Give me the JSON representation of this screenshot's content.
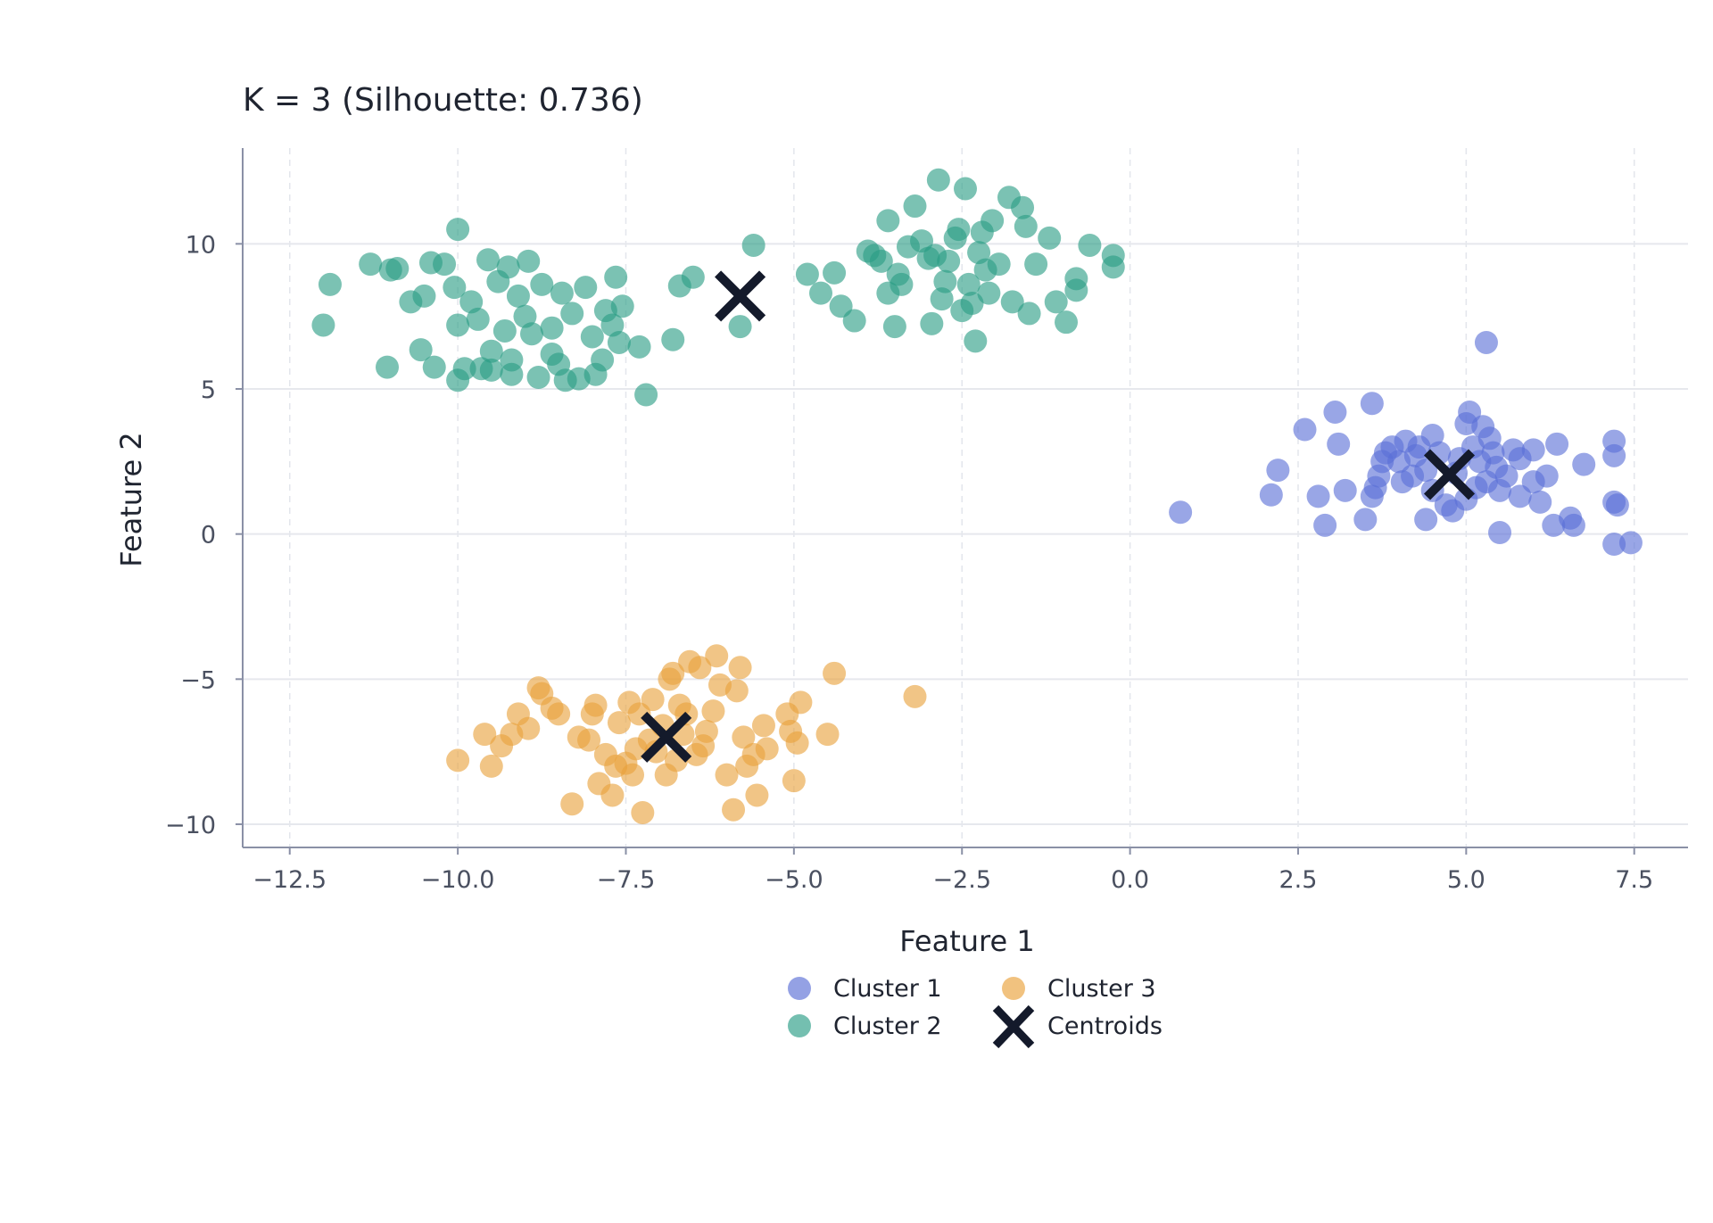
{
  "chart_data": {
    "type": "scatter",
    "title": "K = 3 (Silhouette: 0.736)",
    "xlabel": "Feature 1",
    "ylabel": "Feature 2",
    "xlim": [
      -13.2,
      8.3
    ],
    "ylim": [
      -10.8,
      13.3
    ],
    "xticks": [
      -12.5,
      -10.0,
      -7.5,
      -5.0,
      -2.5,
      0.0,
      2.5,
      5.0,
      7.5
    ],
    "xtick_labels": [
      "−12.5",
      "−10.0",
      "−7.5",
      "−5.0",
      "−2.5",
      "0.0",
      "2.5",
      "5.0",
      "7.5"
    ],
    "yticks": [
      -10,
      -5,
      0,
      5,
      10
    ],
    "ytick_labels": [
      "−10",
      "−5",
      "0",
      "5",
      "10"
    ],
    "grid": true,
    "legend_position": "bottom-center",
    "series": [
      {
        "name": "Cluster 1",
        "color": "#5b6fd6",
        "marker": "circle",
        "points": [
          [
            5.3,
            6.6
          ],
          [
            0.75,
            0.75
          ],
          [
            2.1,
            1.35
          ],
          [
            2.2,
            2.2
          ],
          [
            2.6,
            3.6
          ],
          [
            3.05,
            4.2
          ],
          [
            3.1,
            3.1
          ],
          [
            3.6,
            4.5
          ],
          [
            2.8,
            1.3
          ],
          [
            2.9,
            0.3
          ],
          [
            3.2,
            1.5
          ],
          [
            3.5,
            0.5
          ],
          [
            3.6,
            1.3
          ],
          [
            3.7,
            2.0
          ],
          [
            3.8,
            2.8
          ],
          [
            3.9,
            3.0
          ],
          [
            4.0,
            2.5
          ],
          [
            4.1,
            3.2
          ],
          [
            4.2,
            2.0
          ],
          [
            4.3,
            3.0
          ],
          [
            4.4,
            2.2
          ],
          [
            4.5,
            3.4
          ],
          [
            4.5,
            1.5
          ],
          [
            4.4,
            0.5
          ],
          [
            4.6,
            2.8
          ],
          [
            4.7,
            1.0
          ],
          [
            4.8,
            0.8
          ],
          [
            4.9,
            2.6
          ],
          [
            5.0,
            3.8
          ],
          [
            5.0,
            1.2
          ],
          [
            5.05,
            4.2
          ],
          [
            5.1,
            3.0
          ],
          [
            5.2,
            2.5
          ],
          [
            5.25,
            3.7
          ],
          [
            5.3,
            1.8
          ],
          [
            5.35,
            3.3
          ],
          [
            5.4,
            2.8
          ],
          [
            5.5,
            1.5
          ],
          [
            5.5,
            0.05
          ],
          [
            5.6,
            2.0
          ],
          [
            5.7,
            2.9
          ],
          [
            5.8,
            1.3
          ],
          [
            5.8,
            2.6
          ],
          [
            6.0,
            1.8
          ],
          [
            6.0,
            2.9
          ],
          [
            6.1,
            1.1
          ],
          [
            6.2,
            2.0
          ],
          [
            6.3,
            0.3
          ],
          [
            6.35,
            3.1
          ],
          [
            6.55,
            0.55
          ],
          [
            6.6,
            0.3
          ],
          [
            6.75,
            2.4
          ],
          [
            7.2,
            3.2
          ],
          [
            7.2,
            2.7
          ],
          [
            7.2,
            1.1
          ],
          [
            7.25,
            1.0
          ],
          [
            7.2,
            -0.35
          ],
          [
            7.45,
            -0.3
          ],
          [
            3.75,
            2.5
          ],
          [
            4.05,
            1.8
          ],
          [
            4.85,
            2.1
          ],
          [
            5.15,
            1.6
          ],
          [
            3.65,
            1.6
          ],
          [
            4.25,
            2.7
          ],
          [
            5.45,
            2.3
          ]
        ]
      },
      {
        "name": "Cluster 2",
        "color": "#2a9d85",
        "marker": "circle",
        "points": [
          [
            -12.0,
            7.2
          ],
          [
            -11.9,
            8.6
          ],
          [
            -11.3,
            9.3
          ],
          [
            -11.0,
            9.1
          ],
          [
            -10.9,
            9.15
          ],
          [
            -11.05,
            5.75
          ],
          [
            -10.7,
            8.0
          ],
          [
            -10.5,
            8.2
          ],
          [
            -10.4,
            9.35
          ],
          [
            -10.2,
            9.3
          ],
          [
            -10.55,
            6.35
          ],
          [
            -10.35,
            5.75
          ],
          [
            -10.0,
            10.5
          ],
          [
            -10.05,
            8.5
          ],
          [
            -10.0,
            7.2
          ],
          [
            -10.0,
            5.3
          ],
          [
            -9.9,
            5.7
          ],
          [
            -9.8,
            8.0
          ],
          [
            -9.7,
            7.4
          ],
          [
            -9.65,
            5.7
          ],
          [
            -9.55,
            9.45
          ],
          [
            -9.5,
            6.3
          ],
          [
            -9.5,
            5.65
          ],
          [
            -9.4,
            8.7
          ],
          [
            -9.3,
            7.0
          ],
          [
            -9.25,
            9.2
          ],
          [
            -9.2,
            6.0
          ],
          [
            -9.2,
            5.5
          ],
          [
            -9.1,
            8.2
          ],
          [
            -9.0,
            7.5
          ],
          [
            -8.95,
            9.4
          ],
          [
            -8.9,
            6.9
          ],
          [
            -8.8,
            5.4
          ],
          [
            -8.75,
            8.6
          ],
          [
            -8.6,
            7.1
          ],
          [
            -8.6,
            6.2
          ],
          [
            -8.5,
            5.85
          ],
          [
            -8.45,
            8.3
          ],
          [
            -8.4,
            5.3
          ],
          [
            -8.3,
            7.6
          ],
          [
            -8.2,
            5.35
          ],
          [
            -8.1,
            8.5
          ],
          [
            -8.0,
            6.8
          ],
          [
            -7.95,
            5.5
          ],
          [
            -7.85,
            6.0
          ],
          [
            -7.8,
            7.7
          ],
          [
            -7.7,
            7.2
          ],
          [
            -7.65,
            8.85
          ],
          [
            -7.55,
            7.85
          ],
          [
            -7.6,
            6.6
          ],
          [
            -7.3,
            6.45
          ],
          [
            -7.2,
            4.8
          ],
          [
            -6.8,
            6.7
          ],
          [
            -6.7,
            8.55
          ],
          [
            -6.5,
            8.85
          ],
          [
            -5.6,
            9.95
          ],
          [
            -5.8,
            7.15
          ],
          [
            -4.8,
            8.95
          ],
          [
            -4.6,
            8.3
          ],
          [
            -4.4,
            9.0
          ],
          [
            -4.3,
            7.85
          ],
          [
            -4.1,
            7.35
          ],
          [
            -3.9,
            9.75
          ],
          [
            -3.7,
            9.4
          ],
          [
            -3.6,
            10.8
          ],
          [
            -3.6,
            8.3
          ],
          [
            -3.5,
            7.15
          ],
          [
            -3.4,
            8.6
          ],
          [
            -3.2,
            11.3
          ],
          [
            -3.1,
            10.1
          ],
          [
            -3.0,
            9.5
          ],
          [
            -2.95,
            7.25
          ],
          [
            -2.85,
            12.2
          ],
          [
            -2.8,
            8.1
          ],
          [
            -2.7,
            9.4
          ],
          [
            -2.6,
            10.2
          ],
          [
            -2.5,
            7.7
          ],
          [
            -2.45,
            11.9
          ],
          [
            -2.4,
            8.6
          ],
          [
            -2.3,
            6.65
          ],
          [
            -2.25,
            9.7
          ],
          [
            -2.2,
            10.4
          ],
          [
            -2.1,
            8.3
          ],
          [
            -2.05,
            10.8
          ],
          [
            -1.95,
            9.3
          ],
          [
            -1.8,
            11.6
          ],
          [
            -1.75,
            8.0
          ],
          [
            -1.6,
            11.25
          ],
          [
            -1.55,
            10.6
          ],
          [
            -1.5,
            7.6
          ],
          [
            -1.4,
            9.3
          ],
          [
            -1.2,
            10.2
          ],
          [
            -1.1,
            8.0
          ],
          [
            -0.95,
            7.3
          ],
          [
            -0.8,
            8.8
          ],
          [
            -0.8,
            8.4
          ],
          [
            -0.6,
            9.95
          ],
          [
            -0.25,
            9.6
          ],
          [
            -0.25,
            9.2
          ],
          [
            -3.8,
            9.6
          ],
          [
            -3.3,
            9.9
          ],
          [
            -2.9,
            9.6
          ],
          [
            -2.55,
            10.5
          ],
          [
            -2.35,
            7.95
          ],
          [
            -3.45,
            8.95
          ],
          [
            -2.75,
            8.7
          ],
          [
            -2.15,
            9.1
          ]
        ]
      },
      {
        "name": "Cluster 3",
        "color": "#e9a23b",
        "marker": "circle",
        "points": [
          [
            -10.0,
            -7.8
          ],
          [
            -9.6,
            -6.9
          ],
          [
            -9.5,
            -8.0
          ],
          [
            -9.35,
            -7.3
          ],
          [
            -9.2,
            -6.9
          ],
          [
            -9.1,
            -6.2
          ],
          [
            -8.95,
            -6.7
          ],
          [
            -8.8,
            -5.3
          ],
          [
            -8.75,
            -5.5
          ],
          [
            -8.6,
            -6.0
          ],
          [
            -8.5,
            -6.2
          ],
          [
            -8.3,
            -9.3
          ],
          [
            -8.2,
            -7.0
          ],
          [
            -8.0,
            -6.2
          ],
          [
            -7.95,
            -5.9
          ],
          [
            -7.9,
            -8.6
          ],
          [
            -7.8,
            -7.6
          ],
          [
            -7.7,
            -9.0
          ],
          [
            -7.6,
            -6.5
          ],
          [
            -7.5,
            -7.9
          ],
          [
            -7.45,
            -5.8
          ],
          [
            -7.4,
            -8.3
          ],
          [
            -7.3,
            -6.2
          ],
          [
            -7.25,
            -9.6
          ],
          [
            -7.1,
            -5.7
          ],
          [
            -7.05,
            -7.5
          ],
          [
            -6.95,
            -6.6
          ],
          [
            -6.9,
            -8.3
          ],
          [
            -6.85,
            -5.0
          ],
          [
            -6.8,
            -4.8
          ],
          [
            -6.7,
            -5.9
          ],
          [
            -6.6,
            -6.2
          ],
          [
            -6.55,
            -4.4
          ],
          [
            -6.45,
            -7.6
          ],
          [
            -6.4,
            -4.6
          ],
          [
            -6.3,
            -6.8
          ],
          [
            -6.2,
            -6.1
          ],
          [
            -6.15,
            -4.2
          ],
          [
            -6.1,
            -5.2
          ],
          [
            -6.0,
            -8.3
          ],
          [
            -5.9,
            -9.5
          ],
          [
            -5.85,
            -5.4
          ],
          [
            -5.8,
            -4.6
          ],
          [
            -5.75,
            -7.0
          ],
          [
            -5.7,
            -8.0
          ],
          [
            -5.6,
            -7.6
          ],
          [
            -5.55,
            -9.0
          ],
          [
            -5.45,
            -6.6
          ],
          [
            -5.4,
            -7.4
          ],
          [
            -5.1,
            -6.2
          ],
          [
            -5.05,
            -6.8
          ],
          [
            -5.0,
            -8.5
          ],
          [
            -4.95,
            -7.2
          ],
          [
            -4.9,
            -5.8
          ],
          [
            -4.5,
            -6.9
          ],
          [
            -4.4,
            -4.8
          ],
          [
            -3.2,
            -5.6
          ],
          [
            -7.65,
            -8.0
          ],
          [
            -7.35,
            -7.4
          ],
          [
            -6.75,
            -7.8
          ],
          [
            -7.15,
            -7.1
          ],
          [
            -6.35,
            -7.3
          ],
          [
            -8.05,
            -7.1
          ],
          [
            -6.65,
            -6.9
          ]
        ]
      }
    ],
    "centroids": {
      "name": "Centroids",
      "color": "#141a2b",
      "marker": "x",
      "points": [
        [
          -5.8,
          8.2
        ],
        [
          -6.9,
          -7.0
        ],
        [
          4.75,
          2.05
        ]
      ]
    }
  }
}
